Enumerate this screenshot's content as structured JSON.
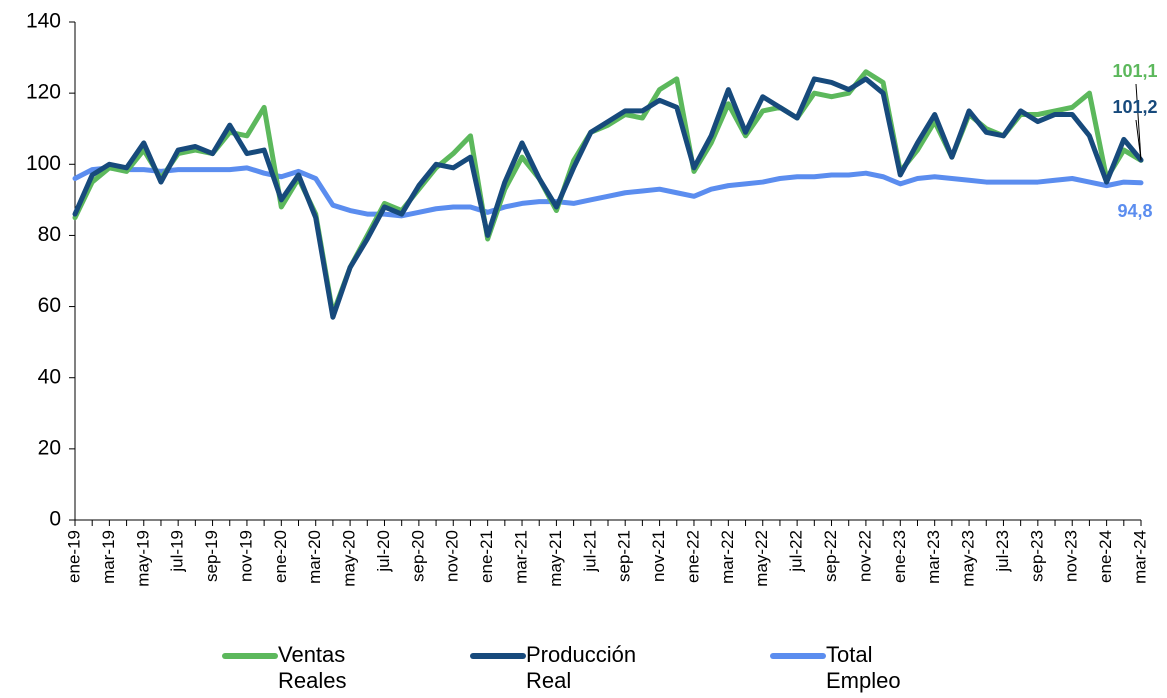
{
  "chart_data": {
    "type": "line",
    "categories": [
      "ene-19",
      null,
      "mar-19",
      null,
      "may-19",
      null,
      "jul-19",
      null,
      "sep-19",
      null,
      "nov-19",
      null,
      "ene-20",
      null,
      "mar-20",
      null,
      "may-20",
      null,
      "jul-20",
      null,
      "sep-20",
      null,
      "nov-20",
      null,
      "ene-21",
      null,
      "mar-21",
      null,
      "may-21",
      null,
      "jul-21",
      null,
      "sep-21",
      null,
      "nov-21",
      null,
      "ene-22",
      null,
      "mar-22",
      null,
      "may-22",
      null,
      "jul-22",
      null,
      "sep-22",
      null,
      "nov-22",
      null,
      "ene-23",
      null,
      "mar-23",
      null,
      "may-23",
      null,
      "jul-23",
      null,
      "sep-23",
      null,
      "nov-23",
      null,
      "ene-24",
      null,
      "mar-24"
    ],
    "series": [
      {
        "name": "Ventas Reales",
        "color": "#5cb85c",
        "values": [
          85,
          95,
          99,
          98,
          104,
          96,
          103,
          104,
          103,
          109,
          108,
          116,
          88,
          96,
          86,
          58,
          71,
          80,
          89,
          87,
          93,
          99,
          103,
          108,
          79,
          93,
          102,
          96,
          87,
          101,
          109,
          111,
          114,
          113,
          121,
          124,
          98,
          106,
          117,
          108,
          115,
          116,
          113,
          120,
          119,
          120,
          126,
          123,
          98,
          104,
          112,
          102,
          114,
          110,
          108,
          114,
          114,
          115,
          116,
          120,
          96,
          104,
          101.1
        ],
        "value_labels": {
          "62": "101,1"
        }
      },
      {
        "name": "Producción Real",
        "color": "#174a7c",
        "values": [
          86,
          97,
          100,
          99,
          106,
          95,
          104,
          105,
          103,
          111,
          103,
          104,
          90,
          97,
          85,
          57,
          71,
          79,
          88,
          86,
          94,
          100,
          99,
          102,
          80,
          95,
          106,
          96,
          88,
          99,
          109,
          112,
          115,
          115,
          118,
          116,
          99,
          108,
          121,
          109,
          119,
          116,
          113,
          124,
          123,
          121,
          124,
          120,
          97,
          106,
          114,
          102,
          115,
          109,
          108,
          115,
          112,
          114,
          114,
          108,
          95,
          107,
          101.2
        ],
        "value_labels": {
          "62": "101,2"
        }
      },
      {
        "name": "Total Empleo",
        "color": "#5b8def",
        "values": [
          96,
          98.5,
          99,
          98.5,
          98.5,
          98,
          98.5,
          98.5,
          98.5,
          98.5,
          99,
          97.5,
          96.5,
          98,
          96,
          88.5,
          87,
          86,
          86,
          85.5,
          86.5,
          87.5,
          88,
          88,
          86.5,
          88,
          89,
          89.5,
          89.5,
          89,
          90,
          91,
          92,
          92.5,
          93,
          92,
          91,
          93,
          94,
          94.5,
          95,
          96,
          96.5,
          96.5,
          97,
          97,
          97.5,
          96.5,
          94.5,
          96,
          96.5,
          96,
          95.5,
          95,
          95,
          95,
          95,
          95.5,
          96,
          95,
          94,
          95,
          94.8
        ],
        "value_labels": {
          "62": "94,8"
        }
      }
    ],
    "ylim": [
      0,
      140
    ],
    "yticks": [
      0,
      20,
      40,
      60,
      80,
      100,
      120,
      140
    ],
    "grid": false,
    "legend": "bottom"
  }
}
